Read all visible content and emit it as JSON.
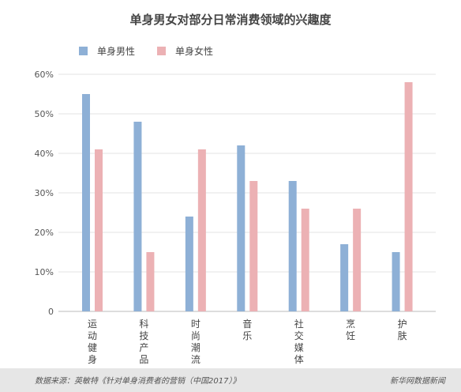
{
  "chart_data": {
    "type": "bar",
    "title": "单身男女对部分日常消费领域的兴趣度",
    "categories": [
      "运动健身",
      "科技产品",
      "时尚潮流",
      "音乐",
      "社交媒体",
      "烹饪",
      "护肤"
    ],
    "series": [
      {
        "name": "单身男性",
        "color": "#8eb0d6",
        "values": [
          55,
          48,
          24,
          42,
          33,
          17,
          15
        ]
      },
      {
        "name": "单身女性",
        "color": "#ecb1b4",
        "values": [
          41,
          15,
          41,
          33,
          26,
          26,
          58
        ]
      }
    ],
    "y_ticks": [
      "0",
      "10%",
      "20%",
      "30%",
      "40%",
      "50%",
      "60%"
    ],
    "ylim": [
      0,
      60
    ],
    "grid": true,
    "legend_position": "top-left",
    "xlabel": "",
    "ylabel": ""
  },
  "footer": {
    "source": "数据来源：英敏特《针对单身消费者的营销（中国2017）》",
    "brand": "新华网数据新闻"
  }
}
